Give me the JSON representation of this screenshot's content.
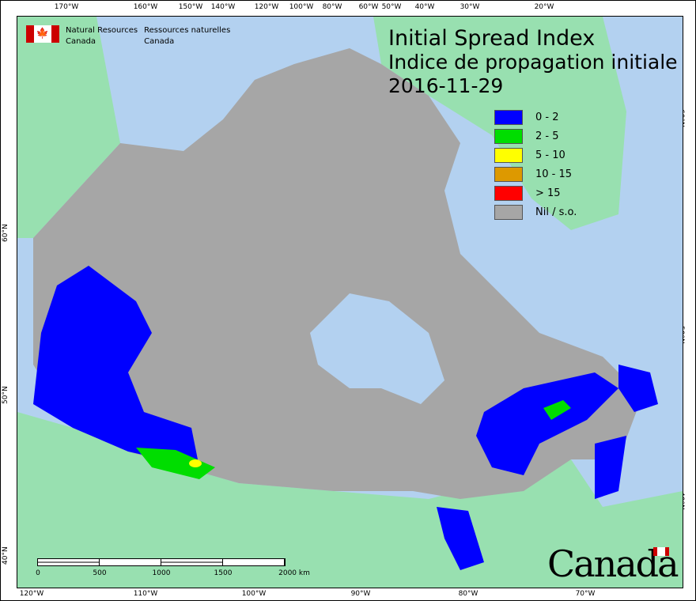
{
  "header": {
    "agency_en_1": "Natural Resources",
    "agency_en_2": "Canada",
    "agency_fr_1": "Ressources naturelles",
    "agency_fr_2": "Canada"
  },
  "title": {
    "en": "Initial Spread Index",
    "fr": "Indice de propagation initiale",
    "date": "2016-11-29"
  },
  "legend": [
    {
      "label": "0 - 2",
      "color": "#0000ff"
    },
    {
      "label": "2 - 5",
      "color": "#00dd00"
    },
    {
      "label": "5 - 10",
      "color": "#ffff00"
    },
    {
      "label": "10 - 15",
      "color": "#dd9900"
    },
    {
      "label": "> 15",
      "color": "#ff0000"
    },
    {
      "label": "Nil / s.o.",
      "color": "#a6a6a6"
    }
  ],
  "colors": {
    "water": "#b3d1f0",
    "foreign_land": "#98e0b0",
    "no_data": "#a6a6a6"
  },
  "top_ticks": [
    "170°W",
    "160°W",
    "150°W",
    "140°W",
    "120°W",
    "100°W",
    "80°W",
    "60°W",
    "50°W",
    "40°W",
    "30°W",
    "20°W"
  ],
  "bottom_ticks": [
    "120°W",
    "110°W",
    "100°W",
    "90°W",
    "80°W",
    "70°W"
  ],
  "left_ticks": [
    "60°N",
    "50°N",
    "40°N"
  ],
  "right_ticks": [
    "60°N",
    "50°N",
    "40°N"
  ],
  "scale": {
    "labels": [
      "0",
      "500",
      "1000",
      "1500",
      "2000 km"
    ]
  },
  "wordmark": "Canada"
}
